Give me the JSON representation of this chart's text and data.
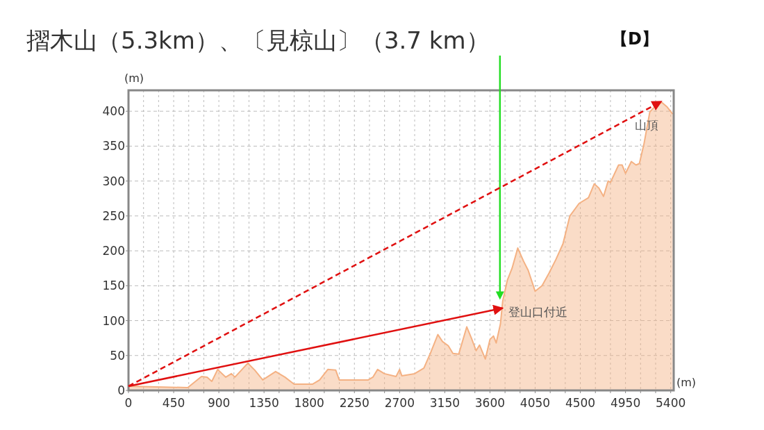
{
  "chart_data": {
    "type": "area",
    "title": "摺木山（5.3km）、〔見椋山〕（3.7 km）",
    "xlabel": "(m)",
    "ylabel": "(m)",
    "x": [
      0,
      590,
      727,
      783,
      830,
      888,
      969,
      1025,
      1060,
      1188,
      1258,
      1337,
      1465,
      1558,
      1649,
      1835,
      1904,
      1985,
      2064,
      2099,
      2388,
      2434,
      2481,
      2548,
      2665,
      2700,
      2722,
      2850,
      2942,
      3012,
      3081,
      3127,
      3185,
      3231,
      3289,
      3369,
      3415,
      3462,
      3496,
      3554,
      3600,
      3635,
      3662,
      3704,
      3727,
      3773,
      3820,
      3877,
      3935,
      3981,
      4050,
      4119,
      4188,
      4258,
      4327,
      4396,
      4488,
      4581,
      4639,
      4685,
      4731,
      4777,
      4800,
      4881,
      4916,
      4950,
      5008,
      5054,
      5088,
      5135,
      5192,
      5250,
      5308,
      5365,
      5420
    ],
    "series": [
      {
        "color": "#f4b183",
        "values": [
          6,
          4,
          20,
          19,
          13,
          30,
          19,
          24,
          19,
          39,
          29,
          15,
          27,
          19,
          9,
          9,
          15,
          30,
          29,
          15,
          15,
          19,
          30,
          24,
          20,
          30,
          21,
          24,
          32,
          55,
          80,
          70,
          64,
          53,
          52,
          91,
          75,
          57,
          65,
          45,
          73,
          78,
          68,
          95,
          128,
          158,
          175,
          204,
          185,
          172,
          142,
          150,
          168,
          188,
          210,
          250,
          268,
          276,
          296,
          290,
          278,
          300,
          298,
          323,
          323,
          311,
          328,
          323,
          325,
          354,
          399,
          408,
          413,
          406,
          396
        ]
      }
    ],
    "xlim": [
      0,
      5430
    ],
    "ylim": [
      0,
      430
    ],
    "xticks": [
      0,
      {
        "value": 150,
        "label": null
      },
      {
        "value": 300,
        "label": null
      },
      450,
      {
        "value": 600,
        "label": null
      },
      {
        "value": 750,
        "label": null
      },
      900,
      {
        "value": 1050,
        "label": null
      },
      {
        "value": 1200,
        "label": null
      },
      1350,
      {
        "value": 1500,
        "label": null
      },
      {
        "value": 1650,
        "label": null
      },
      1800,
      {
        "value": 1950,
        "label": null
      },
      {
        "value": 2100,
        "label": null
      },
      2250,
      {
        "value": 2400,
        "label": null
      },
      {
        "value": 2550,
        "label": null
      },
      2700,
      {
        "value": 2850,
        "label": null
      },
      {
        "value": 3000,
        "label": null
      },
      3150,
      {
        "value": 3300,
        "label": null
      },
      {
        "value": 3450,
        "label": null
      },
      3600,
      {
        "value": 3750,
        "label": null
      },
      {
        "value": 3900,
        "label": null
      },
      4050,
      {
        "value": 4200,
        "label": null
      },
      {
        "value": 4350,
        "label": null
      },
      4500,
      {
        "value": 4650,
        "label": null
      },
      {
        "value": 4800,
        "label": null
      },
      4950,
      {
        "value": 5100,
        "label": null
      },
      {
        "value": 5250,
        "label": null
      },
      5400
    ],
    "yticks": [
      0,
      50,
      100,
      150,
      200,
      250,
      300,
      350,
      400
    ],
    "grid": true,
    "annotations": [
      {
        "text": "登山口付近",
        "x": 3727,
        "y": 118
      },
      {
        "text": "山頂",
        "x": 5308,
        "y": 414
      },
      "【D】"
    ]
  }
}
